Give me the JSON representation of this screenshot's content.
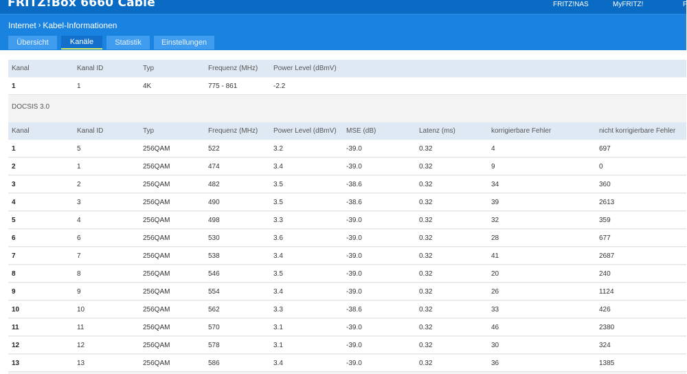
{
  "header": {
    "brand": "FRITZ!Box 6660 Cable",
    "links": [
      "FRITZ!NAS",
      "MyFRITZ!",
      "F"
    ]
  },
  "breadcrumb": {
    "parent": "Internet",
    "separator": "›",
    "current": "Kabel-Informationen"
  },
  "tabs": [
    {
      "label": "Übersicht",
      "active": false
    },
    {
      "label": "Kanäle",
      "active": true
    },
    {
      "label": "Statistik",
      "active": false
    },
    {
      "label": "Einstellungen",
      "active": false
    }
  ],
  "upstream": {
    "headers": [
      "Kanal",
      "Kanal ID",
      "Typ",
      "Frequenz (MHz)",
      "Power Level (dBmV)"
    ],
    "rows": [
      [
        "1",
        "1",
        "4K",
        "775 - 861",
        "-2.2"
      ]
    ]
  },
  "docsis": {
    "title": "DOCSIS 3.0",
    "headers": [
      "Kanal",
      "Kanal ID",
      "Typ",
      "Frequenz (MHz)",
      "Power Level (dBmV)",
      "MSE (dB)",
      "Latenz (ms)",
      "korrigierbare Fehler",
      "nicht korrigierbare Fehler"
    ],
    "rows": [
      [
        "1",
        "5",
        "256QAM",
        "522",
        "3.2",
        "-39.0",
        "0.32",
        "4",
        "697"
      ],
      [
        "2",
        "1",
        "256QAM",
        "474",
        "3.4",
        "-39.0",
        "0.32",
        "9",
        "0"
      ],
      [
        "3",
        "2",
        "256QAM",
        "482",
        "3.5",
        "-38.6",
        "0.32",
        "34",
        "360"
      ],
      [
        "4",
        "3",
        "256QAM",
        "490",
        "3.5",
        "-38.6",
        "0.32",
        "39",
        "2613"
      ],
      [
        "5",
        "4",
        "256QAM",
        "498",
        "3.3",
        "-39.0",
        "0.32",
        "32",
        "359"
      ],
      [
        "6",
        "6",
        "256QAM",
        "530",
        "3.6",
        "-39.0",
        "0.32",
        "28",
        "677"
      ],
      [
        "7",
        "7",
        "256QAM",
        "538",
        "3.4",
        "-39.0",
        "0.32",
        "41",
        "2687"
      ],
      [
        "8",
        "8",
        "256QAM",
        "546",
        "3.5",
        "-39.0",
        "0.32",
        "20",
        "240"
      ],
      [
        "9",
        "9",
        "256QAM",
        "554",
        "3.4",
        "-39.0",
        "0.32",
        "26",
        "1124"
      ],
      [
        "10",
        "10",
        "256QAM",
        "562",
        "3.3",
        "-38.6",
        "0.32",
        "33",
        "426"
      ],
      [
        "11",
        "11",
        "256QAM",
        "570",
        "3.1",
        "-39.0",
        "0.32",
        "46",
        "2380"
      ],
      [
        "12",
        "12",
        "256QAM",
        "578",
        "3.1",
        "-39.0",
        "0.32",
        "30",
        "324"
      ],
      [
        "13",
        "13",
        "256QAM",
        "586",
        "3.4",
        "-39.0",
        "0.32",
        "36",
        "1385"
      ]
    ]
  }
}
